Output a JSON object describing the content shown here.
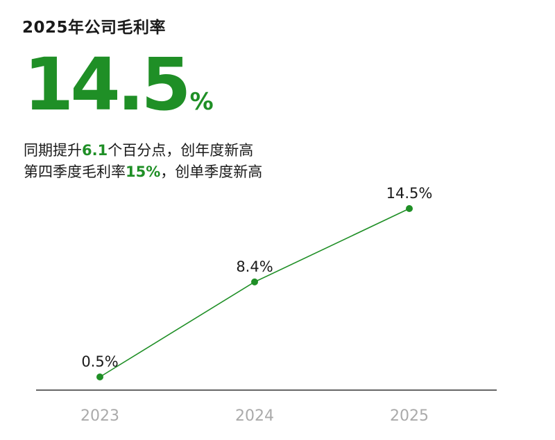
{
  "title": "2025年公司毛利率",
  "headline": {
    "value": "14.5",
    "unit": "%"
  },
  "subtitle": {
    "line1": {
      "before": "同期提升",
      "highlight": "6.1",
      "after": "个百分点，创年度新高"
    },
    "line2": {
      "before": "第四季度毛利率",
      "highlight": "15%",
      "after": "，创单季度新高"
    }
  },
  "colors": {
    "accent": "#1f8f26",
    "text": "#1a1a1a",
    "axis": "#333333",
    "tick_label": "#aaaaaa"
  },
  "chart_data": {
    "type": "line",
    "title": "",
    "xlabel": "",
    "ylabel": "",
    "categories": [
      "2023",
      "2024",
      "2025"
    ],
    "series": [
      {
        "values": [
          0.5,
          8.4,
          14.5
        ],
        "labels": [
          "0.5%",
          "8.4%",
          "14.5%"
        ]
      }
    ],
    "grid": false,
    "legend": "none"
  }
}
